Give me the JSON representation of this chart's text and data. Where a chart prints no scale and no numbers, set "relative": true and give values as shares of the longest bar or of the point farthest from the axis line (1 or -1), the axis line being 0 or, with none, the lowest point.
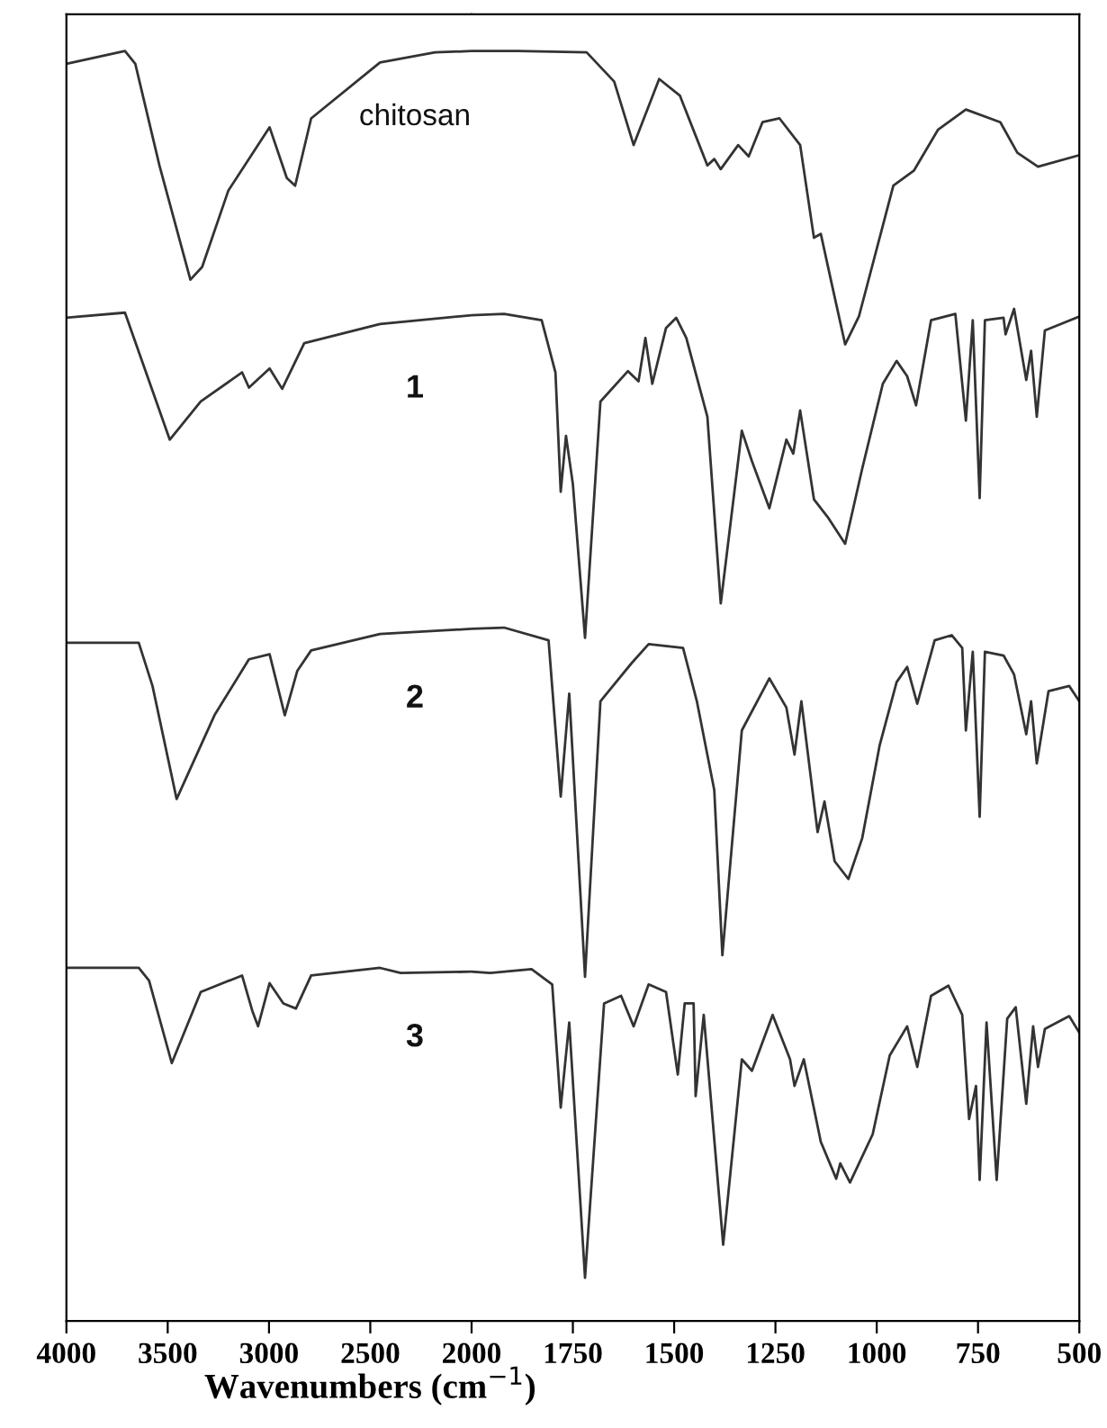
{
  "chart_data": [
    {
      "type": "line",
      "relative": true,
      "xlim": [
        4000,
        2000
      ],
      "xticks": [
        4000,
        3500,
        3000,
        2500
      ],
      "grid": false,
      "legend": false,
      "marker": "none",
      "line_style": "solid",
      "series": [
        {
          "name": "chitosan",
          "color": "#333333",
          "x": [
            4000,
            3711,
            3660,
            3541,
            3388,
            3330,
            3201,
            2997,
            2912,
            2871,
            2792,
            2452,
            2180,
            2000
          ],
          "values": [
            0.99,
            1.0,
            0.99,
            0.91,
            0.82,
            0.83,
            0.89,
            0.94,
            0.9,
            0.894,
            0.947,
            0.991,
            0.999,
            1.0
          ]
        },
        {
          "name": "1",
          "color": "#333333",
          "x": [
            4000,
            3711,
            3490,
            3337,
            3133,
            3099,
            2997,
            2935,
            2826,
            2452,
            2000
          ],
          "values": [
            0.79,
            0.794,
            0.694,
            0.724,
            0.747,
            0.735,
            0.75,
            0.734,
            0.77,
            0.785,
            0.792
          ]
        },
        {
          "name": "2",
          "color": "#333333",
          "x": [
            4000,
            3643,
            3575,
            3456,
            3269,
            3099,
            2997,
            2922,
            2860,
            2792,
            2452,
            2000
          ],
          "values": [
            0.534,
            0.534,
            0.5,
            0.411,
            0.477,
            0.521,
            0.525,
            0.477,
            0.512,
            0.528,
            0.541,
            0.545
          ]
        },
        {
          "name": "3",
          "color": "#333333",
          "x": [
            4000,
            3643,
            3592,
            3480,
            3337,
            3133,
            3082,
            3054,
            2997,
            2929,
            2867,
            2792,
            2452,
            2350,
            2000
          ],
          "values": [
            0.278,
            0.278,
            0.268,
            0.203,
            0.259,
            0.272,
            0.244,
            0.232,
            0.266,
            0.25,
            0.246,
            0.272,
            0.278,
            0.274,
            0.275
          ]
        }
      ]
    },
    {
      "type": "line",
      "relative": true,
      "xlabel": "Wavenumbers (cm$^{−1}$)",
      "xlim": [
        2000,
        500
      ],
      "xticks": [
        2000,
        1750,
        1500,
        1250,
        1000,
        750,
        500
      ],
      "grid": false,
      "legend": false,
      "marker": "none",
      "line_style": "solid",
      "series": [
        {
          "color": "#333333",
          "x": [
            2000,
            1886,
            1716,
            1648,
            1600,
            1537,
            1486,
            1418,
            1401,
            1385,
            1342,
            1316,
            1282,
            1240,
            1189,
            1155,
            1138,
            1112,
            1078,
            1044,
            959,
            908,
            849,
            780,
            695,
            653,
            602,
            500
          ],
          "values": [
            1.0,
            1.0,
            0.999,
            0.976,
            0.926,
            0.978,
            0.965,
            0.91,
            0.915,
            0.907,
            0.926,
            0.917,
            0.944,
            0.947,
            0.926,
            0.853,
            0.856,
            0.818,
            0.769,
            0.791,
            0.894,
            0.906,
            0.938,
            0.954,
            0.944,
            0.92,
            0.909,
            0.918
          ]
        },
        {
          "color": "#333333",
          "x": [
            2000,
            1920,
            1827,
            1793,
            1780,
            1767,
            1750,
            1720,
            1682,
            1614,
            1588,
            1571,
            1554,
            1520,
            1495,
            1470,
            1418,
            1385,
            1333,
            1308,
            1265,
            1223,
            1206,
            1189,
            1155,
            1121,
            1078,
            1036,
            985,
            951,
            925,
            903,
            866,
            806,
            780,
            763,
            746,
            733,
            687,
            682,
            661,
            631,
            619,
            605,
            585,
            500
          ],
          "values": [
            0.792,
            0.793,
            0.788,
            0.747,
            0.653,
            0.697,
            0.659,
            0.538,
            0.724,
            0.748,
            0.74,
            0.774,
            0.738,
            0.782,
            0.79,
            0.774,
            0.712,
            0.565,
            0.701,
            0.677,
            0.64,
            0.694,
            0.683,
            0.717,
            0.647,
            0.633,
            0.612,
            0.671,
            0.738,
            0.756,
            0.744,
            0.721,
            0.788,
            0.793,
            0.709,
            0.788,
            0.648,
            0.788,
            0.79,
            0.777,
            0.797,
            0.741,
            0.764,
            0.712,
            0.78,
            0.791
          ]
        },
        {
          "color": "#333333",
          "x": [
            2000,
            1920,
            1810,
            1780,
            1759,
            1720,
            1682,
            1605,
            1563,
            1478,
            1444,
            1401,
            1381,
            1333,
            1265,
            1223,
            1203,
            1186,
            1146,
            1129,
            1104,
            1070,
            1036,
            993,
            951,
            925,
            900,
            857,
            815,
            789,
            780,
            763,
            746,
            733,
            687,
            661,
            631,
            619,
            605,
            576,
            525,
            500
          ],
          "values": [
            0.545,
            0.546,
            0.536,
            0.413,
            0.494,
            0.271,
            0.488,
            0.518,
            0.533,
            0.53,
            0.488,
            0.418,
            0.288,
            0.465,
            0.506,
            0.483,
            0.446,
            0.488,
            0.385,
            0.409,
            0.362,
            0.348,
            0.38,
            0.453,
            0.503,
            0.515,
            0.486,
            0.536,
            0.54,
            0.53,
            0.465,
            0.527,
            0.397,
            0.527,
            0.524,
            0.509,
            0.462,
            0.488,
            0.439,
            0.496,
            0.5,
            0.488
          ]
        },
        {
          "color": "#333333",
          "x": [
            2000,
            1954,
            1852,
            1801,
            1780,
            1759,
            1720,
            1673,
            1631,
            1600,
            1563,
            1520,
            1491,
            1474,
            1452,
            1447,
            1427,
            1379,
            1333,
            1308,
            1257,
            1214,
            1203,
            1180,
            1138,
            1100,
            1090,
            1066,
            1010,
            968,
            925,
            900,
            866,
            823,
            789,
            772,
            755,
            746,
            729,
            704,
            678,
            657,
            631,
            614,
            602,
            585,
            525,
            500
          ],
          "values": [
            0.275,
            0.274,
            0.277,
            0.265,
            0.168,
            0.235,
            0.034,
            0.25,
            0.256,
            0.232,
            0.265,
            0.259,
            0.194,
            0.25,
            0.25,
            0.177,
            0.241,
            0.06,
            0.206,
            0.197,
            0.241,
            0.206,
            0.185,
            0.206,
            0.141,
            0.112,
            0.124,
            0.109,
            0.147,
            0.209,
            0.232,
            0.2,
            0.256,
            0.264,
            0.241,
            0.159,
            0.185,
            0.111,
            0.235,
            0.111,
            0.238,
            0.247,
            0.171,
            0.232,
            0.2,
            0.23,
            0.24,
            0.227
          ]
        }
      ]
    }
  ]
}
